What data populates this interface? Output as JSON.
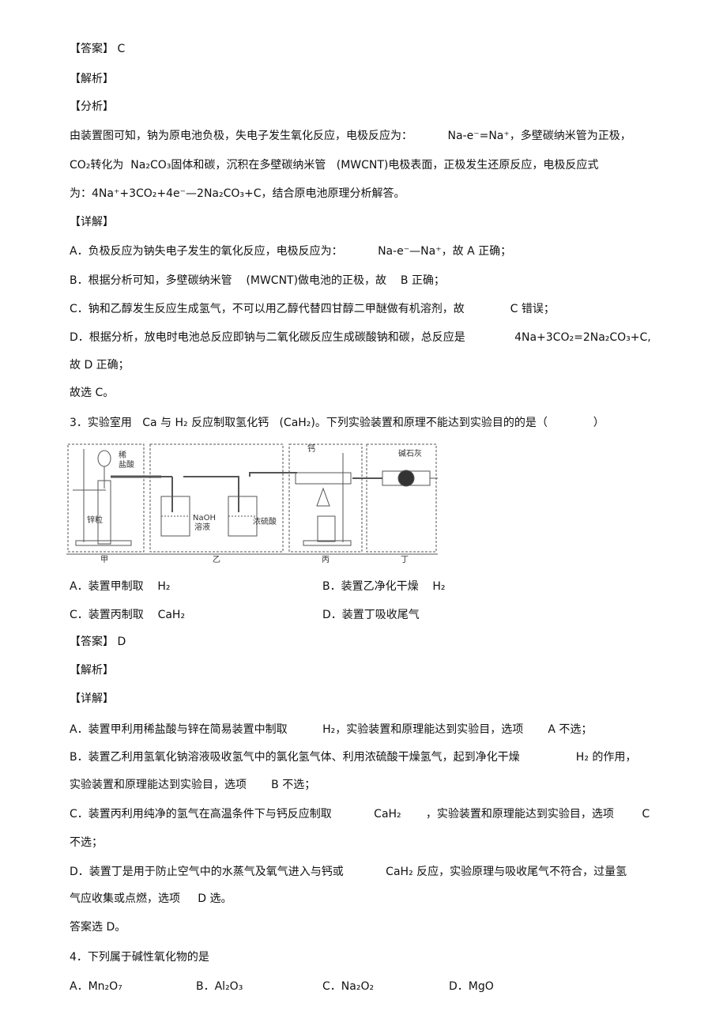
{
  "section1": {
    "answer": "【答案】 C",
    "analysis_heading": "【解析】",
    "sub_heading": "【分析】",
    "analysis_lines": [
      "由装置图可知，钠为原电池负极，失电子发生氧化反应，电极反应为：          Na-e⁻=Na⁺，多壁碳纳米管为正极，",
      "CO₂转化为  Na₂CO₃固体和碳，沉积在多壁碳纳米管   (MWCNT)电极表面，正极发生还原反应，电极反应式",
      "为：4Na⁺+3CO₂+4e⁻—2Na₂CO₃+C，结合原电池原理分析解答。"
    ],
    "detail_heading": "【详解】",
    "detail_lines": [
      "A．负极反应为钠失电子发生的氧化反应，电极反应为：          Na-e⁻—Na⁺，故 A 正确；",
      "B．根据分析可知，多壁碳纳米管    (MWCNT)做电池的正极，故    B 正确；",
      "C．钠和乙醇发生反应生成氢气，不可以用乙醇代替四甘醇二甲醚做有机溶剂，故             C 错误；",
      "D．根据分析，放电时电池总反应即钠与二氧化碳反应生成碳酸钠和碳，总反应是              4Na+3CO₂=2Na₂CO₃+C,",
      "故 D 正确；"
    ],
    "conclusion": "故选 C。"
  },
  "question3": {
    "stem": "3．实验室用   Ca 与 H₂ 反应制取氢化钙   (CaH₂)。下列实验装置和原理不能达到实验目的的是（             ）",
    "figure": {
      "labels": [
        "稀",
        "盐酸",
        "锌粒",
        "NaOH",
        "溶液",
        "浓硫酸",
        "钙",
        "碱石灰"
      ],
      "sections": [
        "甲",
        "乙",
        "丙",
        "丁"
      ]
    },
    "options": [
      "A．装置甲制取    H₂",
      "B．装置乙净化干燥    H₂",
      "C．装置丙制取    CaH₂",
      "D．装置丁吸收尾气"
    ],
    "answer": "【答案】 D",
    "analysis_heading": "【解析】",
    "detail_heading": "【详解】",
    "detail_lines": [
      "A．装置甲利用稀盐酸与锌在简易装置中制取          H₂，实验装置和原理能达到实验目，选项       A 不选；",
      "B．装置乙利用氢氧化钠溶液吸收氢气中的氯化氢气体、利用浓硫酸干燥氢气，起到净化干燥                H₂ 的作用，",
      "实验装置和原理能达到实验目，选项       B 不选；",
      "C．装置丙利用纯净的氢气在高温条件下与钙反应制取            CaH₂       ，实验装置和原理能达到实验目，选项        C",
      "不选；",
      "D．装置丁是用于防止空气中的水蒸气及氧气进入与钙或            CaH₂ 反应，实验原理与吸收尾气不符合，过量氢",
      "气应收集或点燃，选项     D 选。"
    ],
    "conclusion": "答案选 D。"
  },
  "question4": {
    "stem": "4．下列属于碱性氧化物的是",
    "options": [
      "A．Mn₂O₇",
      "B．Al₂O₃",
      "C．Na₂O₂",
      "D．MgO"
    ]
  }
}
